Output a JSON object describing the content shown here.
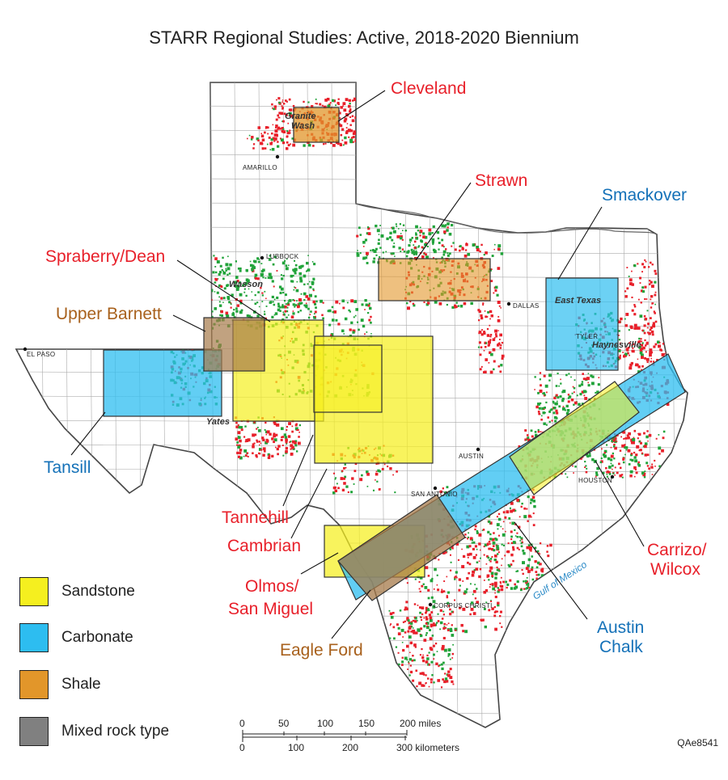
{
  "title": "STARR Regional Studies: Active, 2018-2020 Biennium",
  "colors": {
    "sandstone": "#f5ef1f",
    "carbonate": "#2dbdf0",
    "shale": "#e2962a",
    "mixed": "#808080",
    "label_red": "#e8202a",
    "label_blue": "#1471b8",
    "label_brown": "#a8611d"
  },
  "study_labels": {
    "cleveland": "Cleveland",
    "strawn": "Strawn",
    "smackover": "Smackover",
    "spraberry_dean": "Spraberry/Dean",
    "upper_barnett": "Upper Barnett",
    "tansill": "Tansill",
    "tannehill": "Tannehill",
    "cambrian": "Cambrian",
    "olmos_line1": "Olmos/",
    "olmos_line2": "San Miguel",
    "eagle_ford": "Eagle Ford",
    "austin_line1": "Austin",
    "austin_line2": "Chalk",
    "carrizo_line1": "Carrizo/",
    "carrizo_line2": "Wilcox"
  },
  "cities": {
    "amarillo": "AMARILLO",
    "lubbock": "LUBBOCK",
    "dallas": "DALLAS",
    "el_paso": "EL PASO",
    "austin": "AUSTIN",
    "san_antonio": "SAN ANTONIO",
    "houston": "HOUSTON",
    "corpus_christi": "CORPUS CHRISTI",
    "tyler": "TYLER"
  },
  "fields": {
    "granite_wash_1": "Granite",
    "granite_wash_2": "Wash",
    "wasson": "Wasson",
    "east_texas": "East Texas",
    "haynesville": "Haynesville",
    "yates": "Yates",
    "gulf": "Gulf of Mexico"
  },
  "legend": [
    {
      "label": "Sandstone",
      "color": "#f5ef1f"
    },
    {
      "label": "Carbonate",
      "color": "#2dbdf0"
    },
    {
      "label": "Shale",
      "color": "#e2962a"
    },
    {
      "label": "Mixed rock type",
      "color": "#808080"
    }
  ],
  "scale": {
    "miles_ticks": [
      "0",
      "50",
      "100",
      "150",
      "200 miles"
    ],
    "km_ticks": [
      "0",
      "100",
      "200",
      "300 kilometers"
    ]
  },
  "figure_code": "QAe8541"
}
